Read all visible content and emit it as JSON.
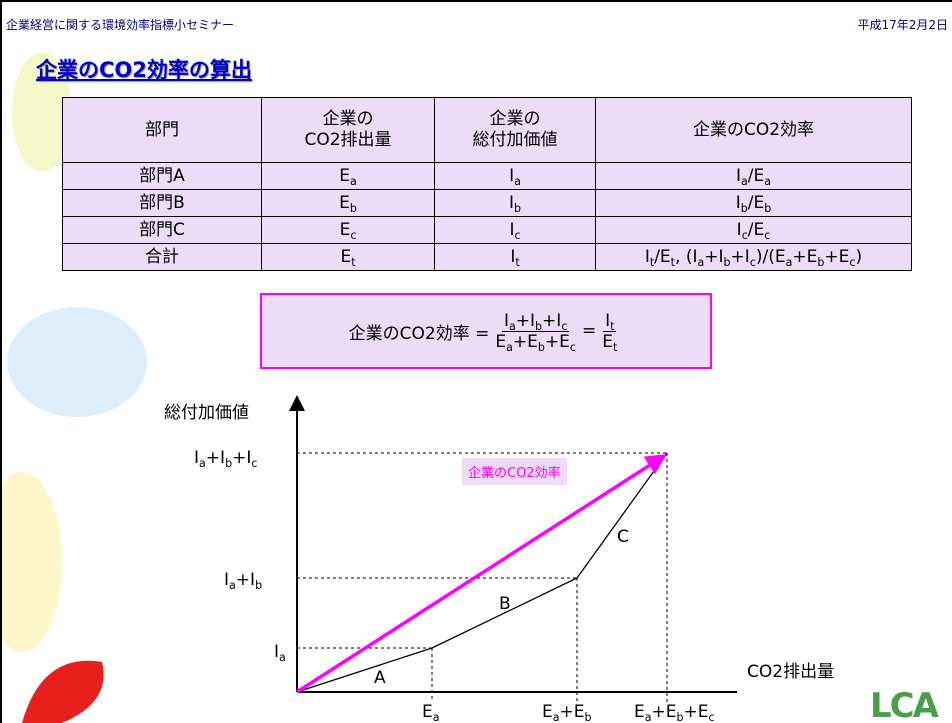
{
  "header": {
    "left": "企業経営に関する環境効率指標小セミナー",
    "right": "平成17年2月2日"
  },
  "title": "企業のCO2効率の算出",
  "table": {
    "header": [
      [
        "部門"
      ],
      [
        "企業の",
        "CO2排出量"
      ],
      [
        "企業の",
        "総付加価値"
      ],
      [
        "企業のCO2効率"
      ]
    ],
    "rows": [
      [
        [
          "部門A"
        ],
        [
          "E",
          {
            "sub": "a"
          }
        ],
        [
          "I",
          {
            "sub": "a"
          }
        ],
        [
          "I",
          {
            "sub": "a"
          },
          "/E",
          {
            "sub": "a"
          }
        ]
      ],
      [
        [
          "部門B"
        ],
        [
          "E",
          {
            "sub": "b"
          }
        ],
        [
          "I",
          {
            "sub": "b"
          }
        ],
        [
          "I",
          {
            "sub": "b"
          },
          "/E",
          {
            "sub": "b"
          }
        ]
      ],
      [
        [
          "部門C"
        ],
        [
          "E",
          {
            "sub": "c"
          }
        ],
        [
          "I",
          {
            "sub": "c"
          }
        ],
        [
          "I",
          {
            "sub": "c"
          },
          "/E",
          {
            "sub": "c"
          }
        ]
      ],
      [
        [
          "合計"
        ],
        [
          "E",
          {
            "sub": "t"
          }
        ],
        [
          "I",
          {
            "sub": "t"
          }
        ],
        [
          "I",
          {
            "sub": "t"
          },
          "/E",
          {
            "sub": "t"
          },
          ", (I",
          {
            "sub": "a"
          },
          "+I",
          {
            "sub": "b"
          },
          "+I",
          {
            "sub": "c"
          },
          ")/(E",
          {
            "sub": "a"
          },
          "+E",
          {
            "sub": "b"
          },
          "+E",
          {
            "sub": "c"
          },
          ")"
        ]
      ]
    ]
  },
  "formula": {
    "label": "企業のCO2効率 =",
    "fraction1": {
      "numerator": [
        "I",
        {
          "sub": "a"
        },
        "+I",
        {
          "sub": "b"
        },
        "+I",
        {
          "sub": "c"
        }
      ],
      "denominator": [
        "E",
        {
          "sub": "a"
        },
        "+E",
        {
          "sub": "b"
        },
        "+E",
        {
          "sub": "c"
        }
      ]
    },
    "equals": "=",
    "fraction2": {
      "numerator": [
        "I",
        {
          "sub": "t"
        }
      ],
      "denominator": [
        "E",
        {
          "sub": "t"
        }
      ]
    }
  },
  "diagram": {
    "y_label": "総付加価値",
    "x_label": "CO2排出量",
    "y_ticks": [
      [
        "I",
        {
          "sub": "a"
        },
        "+I",
        {
          "sub": "b"
        },
        "+I",
        {
          "sub": "c"
        }
      ],
      [
        "I",
        {
          "sub": "a"
        },
        "+I",
        {
          "sub": "b"
        }
      ],
      [
        "I",
        {
          "sub": "a"
        }
      ]
    ],
    "x_ticks": [
      [
        "E",
        {
          "sub": "a"
        }
      ],
      [
        "E",
        {
          "sub": "a"
        },
        "+E",
        {
          "sub": "b"
        }
      ],
      [
        "E",
        {
          "sub": "a"
        },
        "+E",
        {
          "sub": "b"
        },
        "+E",
        {
          "sub": "c"
        }
      ]
    ],
    "segments": [
      "A",
      "B",
      "C"
    ],
    "line_label": "企業のCO2効率"
  },
  "logo": "LCA"
}
